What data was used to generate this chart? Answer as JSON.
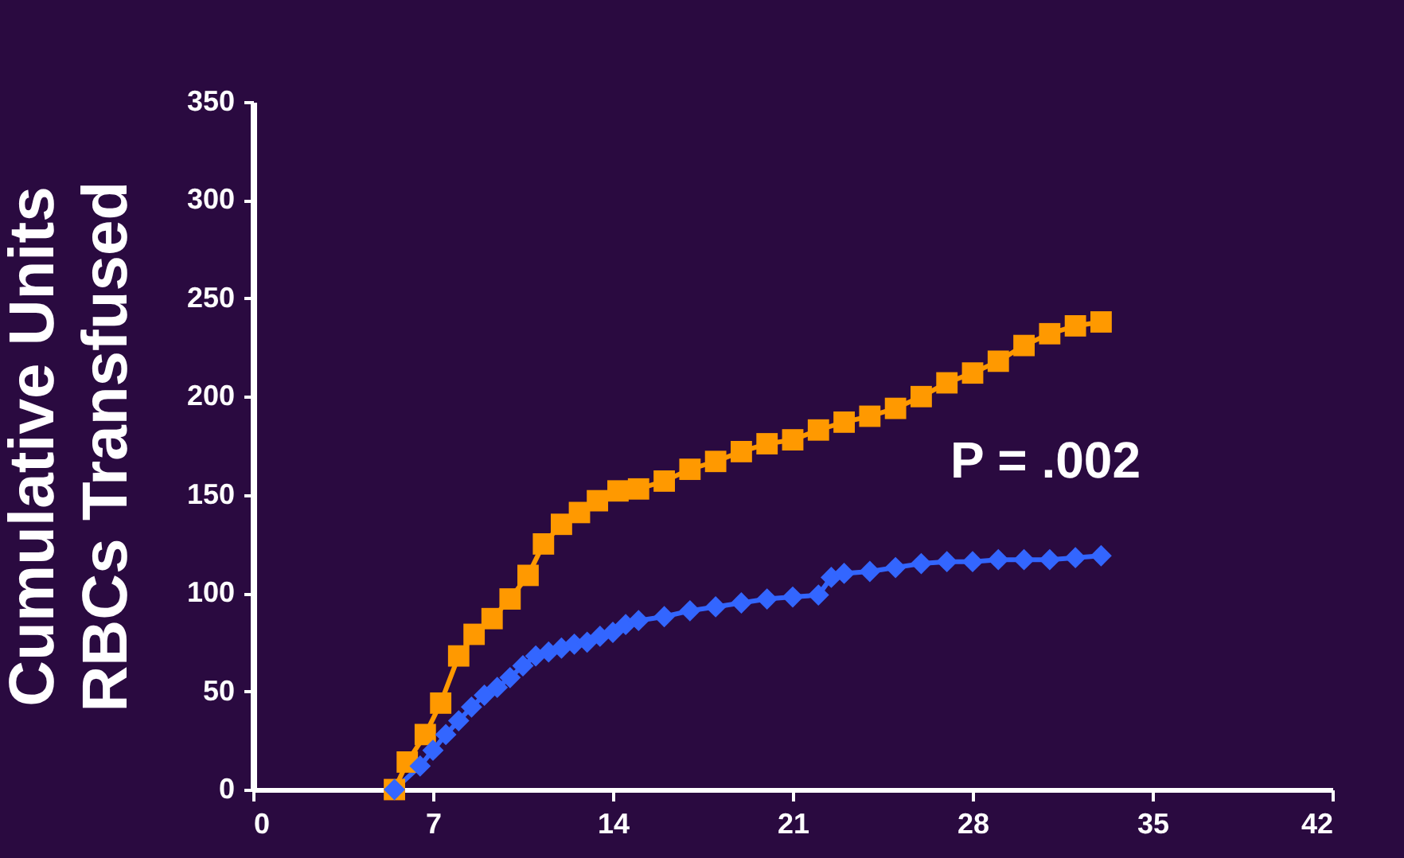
{
  "chart_data": {
    "type": "line",
    "ylabel": "Cumulative Units\nRBCs Transfused",
    "annotations": [
      "P = .002"
    ],
    "xlim": [
      0,
      42
    ],
    "xticks": [
      0,
      7,
      14,
      21,
      28,
      35,
      42
    ],
    "ylim": [
      0,
      350
    ],
    "yticks": [
      0,
      50,
      100,
      150,
      200,
      250,
      300,
      350
    ],
    "grid": false,
    "legend": false,
    "line_style": "solid",
    "series": [
      {
        "color": "#ff9900",
        "marker": "square",
        "x": [
          5.5,
          6,
          6.7,
          7.3,
          8,
          8.6,
          9.3,
          10,
          10.7,
          11.3,
          12,
          12.7,
          13.4,
          14.2,
          15,
          16,
          17,
          18,
          19,
          20,
          21,
          22,
          23,
          24,
          25,
          26,
          27,
          28,
          29,
          30,
          31,
          32,
          33
        ],
        "values": [
          0,
          14,
          28,
          44,
          68,
          79,
          87,
          97,
          109,
          125,
          135,
          141,
          147,
          152,
          153,
          157,
          163,
          167,
          172,
          176,
          178,
          183,
          187,
          190,
          194,
          200,
          207,
          212,
          218,
          226,
          232,
          236,
          238
        ]
      },
      {
        "color": "#3366ff",
        "marker": "diamond",
        "x": [
          5.5,
          6.5,
          7,
          7.5,
          8,
          8.5,
          9,
          9.5,
          10,
          10.5,
          11,
          11.5,
          12,
          12.5,
          13,
          13.5,
          14,
          14.5,
          15,
          16,
          17,
          18,
          19,
          20,
          21,
          22,
          22.5,
          23,
          24,
          25,
          26,
          27,
          28,
          29,
          30,
          31,
          32,
          33
        ],
        "values": [
          0,
          12,
          20,
          28,
          35,
          42,
          48,
          52,
          57,
          63,
          68,
          70,
          72,
          74,
          75,
          78,
          80,
          84,
          86,
          88,
          91,
          93,
          95,
          97,
          98,
          99,
          108,
          110,
          111,
          113,
          115,
          116,
          116,
          117,
          117,
          117,
          118,
          119
        ]
      }
    ]
  }
}
